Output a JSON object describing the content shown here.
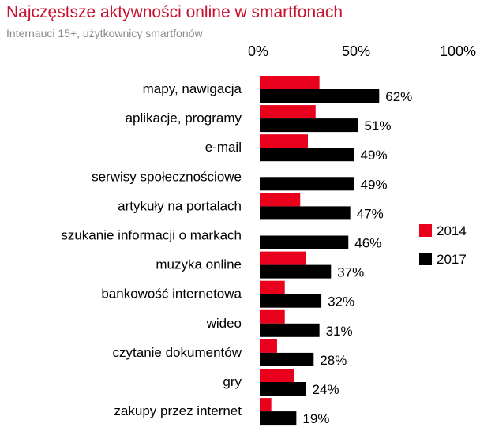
{
  "header": {
    "title": "Najczęstsze aktywności online w smartfonach",
    "subtitle": "Internauci 15+, użytkownicy smartfonów"
  },
  "chart_data": {
    "type": "bar",
    "orientation": "horizontal",
    "title": "Najczęstsze aktywności online w smartfonach",
    "subtitle": "Internauci 15+, użytkownicy smartfonów",
    "x_ticks": [
      "0%",
      "50%",
      "100%"
    ],
    "xlim": [
      0,
      100
    ],
    "grid": false,
    "legend_position": "right",
    "categories": [
      "mapy, nawigacja",
      "aplikacje, programy",
      "e-mail",
      "serwisy społecznościowe",
      "artykuły na portalach",
      "szukanie informacji o markach",
      "muzyka online",
      "bankowość internetowa",
      "wideo",
      "czytanie dokumentów",
      "gry",
      "zakupy przez internet"
    ],
    "series": [
      {
        "name": "2014",
        "color": "#e8001c",
        "values": [
          31,
          29,
          25,
          null,
          21,
          null,
          24,
          13,
          13,
          9,
          18,
          6
        ]
      },
      {
        "name": "2017",
        "color": "#000000",
        "values": [
          62,
          51,
          49,
          49,
          47,
          46,
          37,
          32,
          31,
          28,
          24,
          19
        ],
        "data_labels": [
          "62%",
          "51%",
          "49%",
          "49%",
          "47%",
          "46%",
          "37%",
          "32%",
          "31%",
          "28%",
          "24%",
          "19%"
        ]
      }
    ]
  }
}
